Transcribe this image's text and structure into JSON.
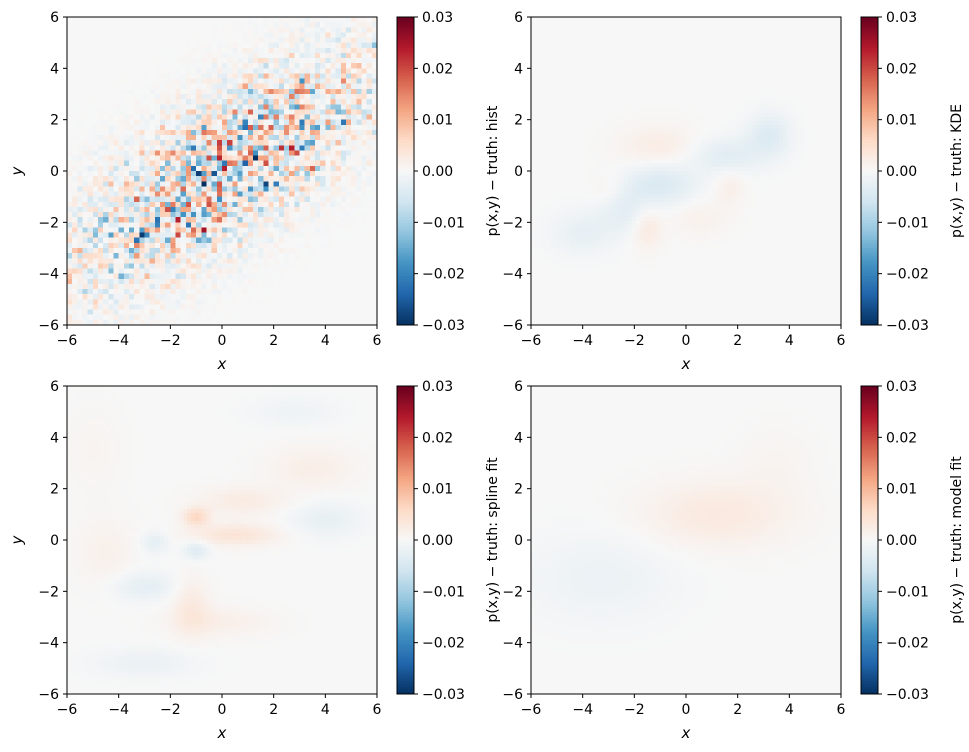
{
  "chart_data": [
    {
      "type": "heatmap",
      "xlabel": "x",
      "ylabel": "y",
      "colorbar_label": "p(x,y) − truth: hist",
      "xlim": [
        -6,
        6
      ],
      "ylim": [
        -6,
        6
      ],
      "xticks": [
        -6,
        -4,
        -2,
        0,
        2,
        4,
        6
      ],
      "yticks": [
        -6,
        -4,
        -2,
        0,
        2,
        4,
        6
      ],
      "colorbar_range": [
        -0.03,
        0.03
      ],
      "colorbar_ticks": [
        "0.03",
        "0.02",
        "0.01",
        "0.00",
        "−0.01",
        "−0.02",
        "−0.03"
      ],
      "colormap": "RdBu_r",
      "grid": false,
      "field": {
        "kind": "noise",
        "angle_deg": 35,
        "sigma_major": 4.0,
        "sigma_minor": 1.4,
        "amplitude": 0.03
      }
    },
    {
      "type": "heatmap",
      "xlabel": "x",
      "ylabel": "",
      "colorbar_label": "p(x,y) − truth: KDE",
      "xlim": [
        -6,
        6
      ],
      "ylim": [
        -6,
        6
      ],
      "xticks": [
        -6,
        -4,
        -2,
        0,
        2,
        4,
        6
      ],
      "yticks": [
        -6,
        -4,
        -2,
        0,
        2,
        4,
        6
      ],
      "colorbar_range": [
        -0.03,
        0.03
      ],
      "colorbar_ticks": [
        "0.03",
        "0.02",
        "0.01",
        "0.00",
        "−0.01",
        "−0.02",
        "−0.03"
      ],
      "colormap": "RdBu_r",
      "grid": false,
      "field": {
        "kind": "smooth",
        "blobs": [
          [
            -1.0,
            -0.5,
            1.0,
            0.6,
            -0.0045
          ],
          [
            1.5,
            0.6,
            1.0,
            0.5,
            -0.0035
          ],
          [
            3.2,
            1.4,
            0.6,
            0.6,
            -0.004
          ],
          [
            -2.4,
            -1.5,
            0.7,
            0.6,
            -0.003
          ],
          [
            -4.0,
            -2.4,
            0.9,
            0.6,
            -0.0025
          ],
          [
            -1.0,
            0.9,
            1.1,
            0.6,
            0.0025
          ],
          [
            -1.5,
            -2.2,
            0.4,
            0.6,
            0.003
          ],
          [
            1.7,
            -0.6,
            0.4,
            0.5,
            0.002
          ],
          [
            -3.0,
            -0.8,
            0.5,
            0.5,
            0.0015
          ],
          [
            0.5,
            -1.8,
            0.8,
            0.5,
            0.0015
          ]
        ]
      }
    },
    {
      "type": "heatmap",
      "xlabel": "x",
      "ylabel": "y",
      "colorbar_label": "p(x,y) − truth: spline fit",
      "xlim": [
        -6,
        6
      ],
      "ylim": [
        -6,
        6
      ],
      "xticks": [
        -6,
        -4,
        -2,
        0,
        2,
        4,
        6
      ],
      "yticks": [
        -6,
        -4,
        -2,
        0,
        2,
        4,
        6
      ],
      "colorbar_range": [
        -0.03,
        0.03
      ],
      "colorbar_ticks": [
        "0.03",
        "0.02",
        "0.01",
        "0.00",
        "−0.01",
        "−0.02",
        "−0.03"
      ],
      "colormap": "RdBu_r",
      "grid": false,
      "field": {
        "kind": "smooth",
        "blobs": [
          [
            -1.0,
            0.9,
            0.35,
            0.25,
            0.006
          ],
          [
            -1.0,
            -0.4,
            0.35,
            0.25,
            -0.004
          ],
          [
            0.5,
            0.2,
            1.2,
            0.3,
            0.004
          ],
          [
            -2.6,
            -0.1,
            0.35,
            0.3,
            -0.003
          ],
          [
            -1.2,
            -2.6,
            0.5,
            0.8,
            0.003
          ],
          [
            0.8,
            1.5,
            1.2,
            0.4,
            0.0025
          ],
          [
            -3.0,
            -1.8,
            0.9,
            0.4,
            -0.003
          ],
          [
            -3.0,
            -4.8,
            1.4,
            0.4,
            -0.002
          ],
          [
            4.0,
            0.8,
            1.0,
            0.5,
            -0.0025
          ],
          [
            3.5,
            2.8,
            1.2,
            0.6,
            0.002
          ],
          [
            2.8,
            5.0,
            1.2,
            0.4,
            -0.0015
          ],
          [
            -4.5,
            -0.5,
            0.8,
            1.0,
            0.0015
          ],
          [
            0.0,
            -3.2,
            1.4,
            0.4,
            0.0018
          ],
          [
            -5.0,
            3.5,
            0.8,
            1.2,
            0.0008
          ]
        ]
      }
    },
    {
      "type": "heatmap",
      "xlabel": "x",
      "ylabel": "",
      "colorbar_label": "p(x,y) − truth: model fit",
      "xlim": [
        -6,
        6
      ],
      "ylim": [
        -6,
        6
      ],
      "xticks": [
        -6,
        -4,
        -2,
        0,
        2,
        4,
        6
      ],
      "yticks": [
        -6,
        -4,
        -2,
        0,
        2,
        4,
        6
      ],
      "colorbar_range": [
        -0.03,
        0.03
      ],
      "colorbar_ticks": [
        "0.03",
        "0.02",
        "0.01",
        "0.00",
        "−0.01",
        "−0.02",
        "−0.03"
      ],
      "colormap": "RdBu_r",
      "grid": false,
      "field": {
        "kind": "smooth",
        "blobs": [
          [
            1.2,
            1.0,
            2.0,
            0.9,
            0.003
          ],
          [
            -3.3,
            -1.5,
            2.0,
            1.2,
            -0.0018
          ],
          [
            3.5,
            3.0,
            1.0,
            1.0,
            0.0008
          ]
        ]
      }
    }
  ]
}
